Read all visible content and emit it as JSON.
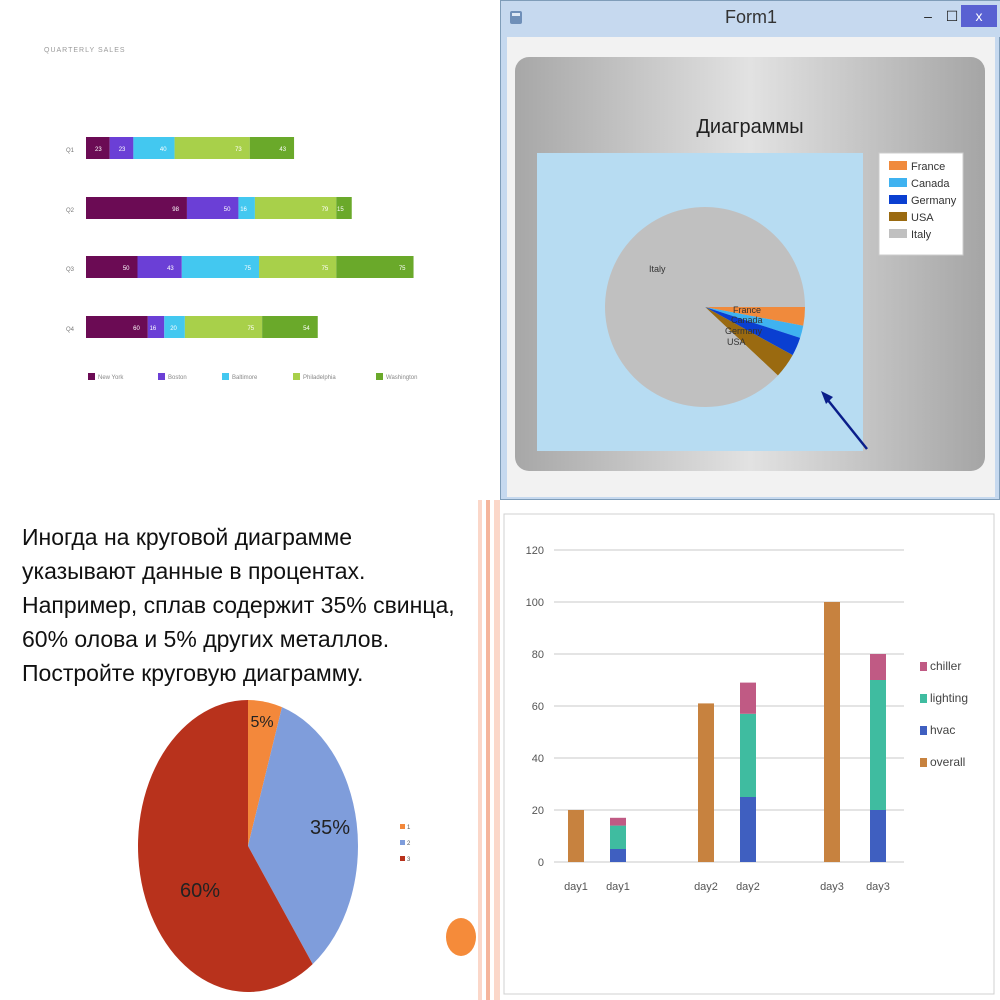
{
  "quarterly": {
    "title": "QUARTERLY SALES",
    "chart_data": {
      "type": "bar",
      "orientation": "horizontal",
      "stacked": true,
      "title": "QUARTERLY SALES",
      "categories": [
        "Q1",
        "Q2",
        "Q3",
        "Q4"
      ],
      "series": [
        {
          "name": "New York",
          "values": [
            23,
            98,
            50,
            60
          ]
        },
        {
          "name": "Boston",
          "values": [
            23,
            50,
            43,
            16
          ]
        },
        {
          "name": "Baltimore",
          "values": [
            40,
            16,
            75,
            20
          ]
        },
        {
          "name": "Philadelphia",
          "values": [
            73,
            79,
            75,
            75
          ]
        },
        {
          "name": "Washington",
          "values": [
            43,
            15,
            75,
            54
          ]
        }
      ],
      "colors": [
        "#6b0b54",
        "#6b3fd6",
        "#43c8f0",
        "#a8d04a",
        "#6aa92a"
      ],
      "legend": "bottom",
      "grid": false
    }
  },
  "form": {
    "window_title": "Form1",
    "minimize": "–",
    "maximize": "☐",
    "close": "x",
    "chart_data": {
      "type": "pie",
      "title": "Диаграммы",
      "categories": [
        "France",
        "Canada",
        "Germany",
        "USA",
        "Italy"
      ],
      "values": [
        3,
        2,
        3,
        4,
        88
      ],
      "slice_labels": [
        "France",
        "Canada",
        "Germany",
        "USA",
        "Italy"
      ],
      "colors": [
        "#f08a3c",
        "#3fb2f0",
        "#0a3fd1",
        "#9a6a10",
        "#c0c0c0"
      ],
      "legend": "top-right",
      "plot_background": "#b7dcf2"
    }
  },
  "task": {
    "text": "Иногда  на круговой диаграмме\nуказывают данные в процентах.\nНапример, сплав содержит 35% свинца,\n60% олова и 5% других металлов.\nПостройте круговую диаграмму.",
    "chart_data": {
      "type": "pie",
      "categories": [
        "1",
        "2",
        "3"
      ],
      "values": [
        5,
        35,
        60
      ],
      "data_labels": [
        "5%",
        "35%",
        "60%"
      ],
      "colors": [
        "#f3883b",
        "#7f9ddb",
        "#b8321c"
      ],
      "legend": "right"
    }
  },
  "energy": {
    "chart_data": {
      "type": "bar",
      "stacked": true,
      "categories": [
        "day1",
        "day1",
        "day2",
        "day2",
        "day3",
        "day3"
      ],
      "series": [
        {
          "name": "overall",
          "values": [
            20,
            0,
            61,
            0,
            100,
            0
          ]
        },
        {
          "name": "hvac",
          "values": [
            0,
            5,
            0,
            25,
            0,
            20
          ]
        },
        {
          "name": "lighting",
          "values": [
            0,
            9,
            0,
            32,
            0,
            50
          ]
        },
        {
          "name": "chiller",
          "values": [
            0,
            3,
            0,
            12,
            0,
            10
          ]
        }
      ],
      "legend_order": [
        "chiller",
        "lighting",
        "hvac",
        "overall"
      ],
      "colors": {
        "overall": "#c7823f",
        "hvac": "#3f5fc0",
        "lighting": "#3fbca0",
        "chiller": "#c05a84"
      },
      "ylim": [
        0,
        120
      ],
      "yticks": [
        0,
        20,
        40,
        60,
        80,
        100,
        120
      ],
      "grid": true,
      "legend": "right"
    }
  }
}
